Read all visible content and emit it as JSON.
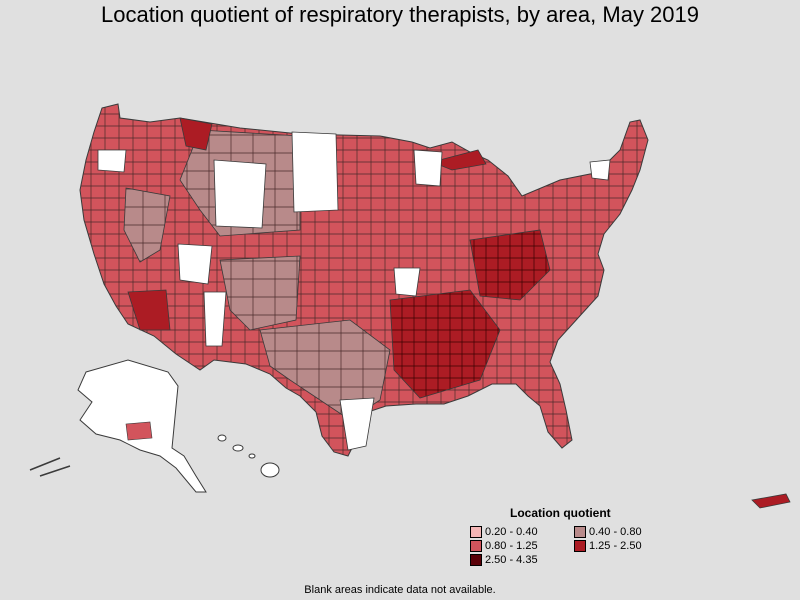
{
  "title": "Location quotient of respiratory therapists, by area, May 2019",
  "legend": {
    "title": "Location quotient",
    "items": [
      {
        "label": "0.20 - 0.40",
        "color": "#f4b6b6"
      },
      {
        "label": "0.40 - 0.80",
        "color": "#b88a8a"
      },
      {
        "label": "0.80 - 1.25",
        "color": "#d2545c"
      },
      {
        "label": "1.25 - 2.50",
        "color": "#ac1c24"
      },
      {
        "label": "2.50 - 4.35",
        "color": "#5a0008"
      }
    ]
  },
  "footnote": "Blank areas indicate data not available.",
  "colors": {
    "background": "#e0e0e0",
    "no_data": "#ffffff",
    "border": "#3a3a3a"
  }
}
